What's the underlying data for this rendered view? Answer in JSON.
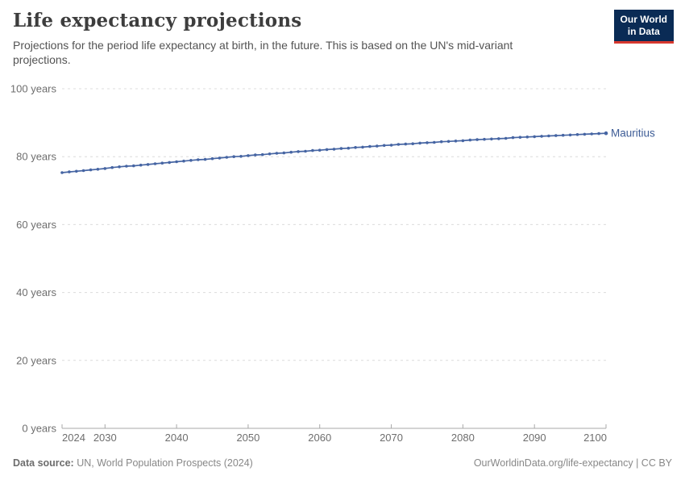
{
  "header": {
    "title": "Life expectancy projections",
    "subtitle": "Projections for the period life expectancy at birth, in the future. This is based on the UN's mid-variant projections.",
    "logo": {
      "line1": "Our World",
      "line2": "in Data"
    }
  },
  "footer": {
    "sources_label": "Data source:",
    "sources_text": "UN, World Population Prospects (2024)",
    "note_right": "OurWorldinData.org/life-expectancy | CC BY"
  },
  "colors": {
    "series_line": "#4665a3",
    "entity_label": "#3d5c96",
    "gridline": "#dcdcdc",
    "axis_line": "#a8a8a8",
    "tick_label": "#6e6e6e",
    "logo_bg": "#0a2b55",
    "logo_stripe": "#d7382e"
  },
  "chart_data": {
    "type": "line",
    "title": "Life expectancy projections",
    "xlabel": "",
    "ylabel": "",
    "xlim": [
      2024,
      2100
    ],
    "ylim": [
      0,
      100
    ],
    "grid": "dashed-horizontal",
    "legend_position": "end-of-line-label",
    "x_ticks": [
      2024,
      2030,
      2040,
      2050,
      2060,
      2070,
      2080,
      2090,
      2100
    ],
    "y_ticks": [
      0,
      20,
      40,
      60,
      80,
      100
    ],
    "y_tick_labels": [
      "0 years",
      "20 years",
      "40 years",
      "60 years",
      "80 years",
      "100 years"
    ],
    "x": [
      2024,
      2025,
      2026,
      2027,
      2028,
      2029,
      2030,
      2031,
      2032,
      2033,
      2034,
      2035,
      2036,
      2037,
      2038,
      2039,
      2040,
      2041,
      2042,
      2043,
      2044,
      2045,
      2046,
      2047,
      2048,
      2049,
      2050,
      2051,
      2052,
      2053,
      2054,
      2055,
      2056,
      2057,
      2058,
      2059,
      2060,
      2061,
      2062,
      2063,
      2064,
      2065,
      2066,
      2067,
      2068,
      2069,
      2070,
      2071,
      2072,
      2073,
      2074,
      2075,
      2076,
      2077,
      2078,
      2079,
      2080,
      2081,
      2082,
      2083,
      2084,
      2085,
      2086,
      2087,
      2088,
      2089,
      2090,
      2091,
      2092,
      2093,
      2094,
      2095,
      2096,
      2097,
      2098,
      2099,
      2100
    ],
    "series": [
      {
        "name": "Mauritius",
        "values": [
          75.3,
          75.5,
          75.7,
          75.9,
          76.1,
          76.3,
          76.5,
          76.8,
          77.0,
          77.2,
          77.3,
          77.5,
          77.7,
          77.9,
          78.1,
          78.3,
          78.5,
          78.7,
          78.9,
          79.1,
          79.2,
          79.4,
          79.6,
          79.8,
          80.0,
          80.1,
          80.3,
          80.5,
          80.6,
          80.8,
          81.0,
          81.1,
          81.3,
          81.5,
          81.6,
          81.8,
          81.9,
          82.1,
          82.2,
          82.4,
          82.5,
          82.7,
          82.8,
          83.0,
          83.1,
          83.3,
          83.4,
          83.6,
          83.7,
          83.8,
          84.0,
          84.1,
          84.2,
          84.4,
          84.5,
          84.6,
          84.7,
          84.9,
          85.0,
          85.1,
          85.2,
          85.3,
          85.4,
          85.6,
          85.7,
          85.8,
          85.9,
          86.0,
          86.1,
          86.2,
          86.3,
          86.4,
          86.5,
          86.6,
          86.7,
          86.8,
          86.9
        ]
      }
    ]
  }
}
